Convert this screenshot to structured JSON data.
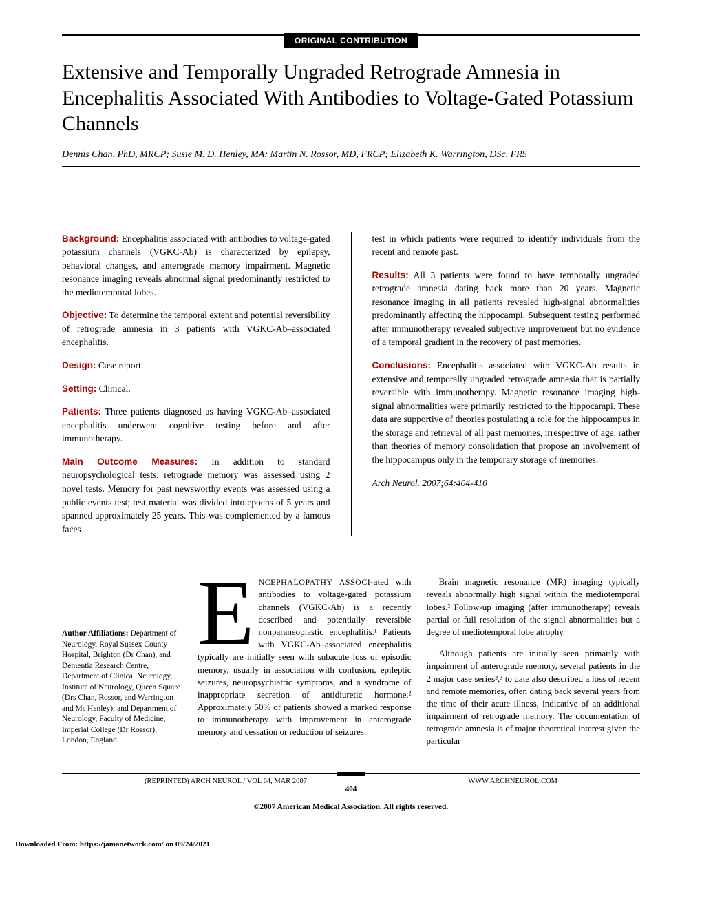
{
  "banner": "ORIGINAL CONTRIBUTION",
  "title": "Extensive and Temporally Ungraded Retrograde Amnesia in Encephalitis Associated With Antibodies to Voltage-Gated Potassium Channels",
  "authors": "Dennis Chan, PhD, MRCP; Susie M. D. Henley, MA; Martin N. Rossor, MD, FRCP; Elizabeth K. Warrington, DSc, FRS",
  "abstract": {
    "background": {
      "label": "Background:",
      "text": " Encephalitis associated with antibodies to voltage-gated potassium channels (VGKC-Ab) is characterized by epilepsy, behavioral changes, and anterograde memory impairment. Magnetic resonance imaging reveals abnormal signal predominantly restricted to the mediotemporal lobes."
    },
    "objective": {
      "label": "Objective:",
      "text": " To determine the temporal extent and potential reversibility of retrograde amnesia in 3 patients with VGKC-Ab–associated encephalitis."
    },
    "design": {
      "label": "Design:",
      "text": " Case report."
    },
    "setting": {
      "label": "Setting:",
      "text": " Clinical."
    },
    "patients": {
      "label": "Patients:",
      "text": " Three patients diagnosed as having VGKC-Ab–associated encephalitis underwent cognitive testing before and after immunotherapy."
    },
    "measures": {
      "label": "Main Outcome Measures:",
      "text": " In addition to standard neuropsychological tests, retrograde memory was assessed using 2 novel tests. Memory for past newsworthy events was assessed using a public events test; test material was divided into epochs of 5 years and spanned approximately 25 years. This was complemented by a famous faces"
    },
    "measures_cont": "test in which patients were required to identify individuals from the recent and remote past.",
    "results": {
      "label": "Results:",
      "text": " All 3 patients were found to have temporally ungraded retrograde amnesia dating back more than 20 years. Magnetic resonance imaging in all patients revealed high-signal abnormalities predominantly affecting the hippocampi. Subsequent testing performed after immunotherapy revealed subjective improvement but no evidence of a temporal gradient in the recovery of past memories."
    },
    "conclusions": {
      "label": "Conclusions:",
      "text": " Encephalitis associated with VGKC-Ab results in extensive and temporally ungraded retrograde amnesia that is partially reversible with immunotherapy. Magnetic resonance imaging high-signal abnormalities were primarily restricted to the hippocampi. These data are supportive of theories postulating a role for the hippocampus in the storage and retrieval of all past memories, irrespective of age, rather than theories of memory consolidation that propose an involvement of the hippocampus only in the temporary storage of memories."
    }
  },
  "citation": "Arch Neurol. 2007;64:404-410",
  "affiliations": {
    "heading": "Author Affiliations:",
    "text": " Department of Neurology, Royal Sussex County Hospital, Brighton (Dr Chan), and Dementia Research Centre, Department of Clinical Neurology, Institute of Neurology, Queen Square (Drs Chan, Rossor, and Warrington and Ms Henley); and Department of Neurology, Faculty of Medicine, Imperial College (Dr Rossor), London, England."
  },
  "body": {
    "dropcap": "E",
    "smallcaps_lead": "NCEPHALOPATHY ASSOCI-",
    "col1_p1": "ated with antibodies to voltage-gated potassium channels (VGKC-Ab) is a recently described and potentially reversible nonparaneoplastic encephalitis.¹ Patients with VGKC-Ab–associated encephalitis typically are initially seen with subacute loss of episodic memory, usually in association with confusion, epileptic seizures, neuropsychiatric symptoms, and a syndrome of inappropriate secretion of antidiuretic hormone.² Approximately 50% of patients showed a marked response to immunotherapy with improvement in anterograde memory and cessation or reduction of seizures.",
    "col2_p1": "Brain magnetic resonance (MR) imaging typically reveals abnormally high signal within the mediotemporal lobes.² Follow-up imaging (after immunotherapy) reveals partial or full resolution of the signal abnormalities but a degree of mediotemporal lobe atrophy.",
    "col2_p2": "Although patients are initially seen primarily with impairment of anterograde memory, several patients in the 2 major case series²,³ to date also described a loss of recent and remote memories, often dating back several years from the time of their acute illness, indicative of an additional impairment of retrograde memory. The documentation of retrograde amnesia is of major theoretical interest given the particular"
  },
  "footer": {
    "left": "(REPRINTED) ARCH NEUROL / VOL 64, MAR 2007",
    "right": "WWW.ARCHNEUROL.COM",
    "page": "404",
    "copyright": "©2007 American Medical Association. All rights reserved.",
    "download": "Downloaded From: https://jamanetwork.com/ on 09/24/2021"
  }
}
